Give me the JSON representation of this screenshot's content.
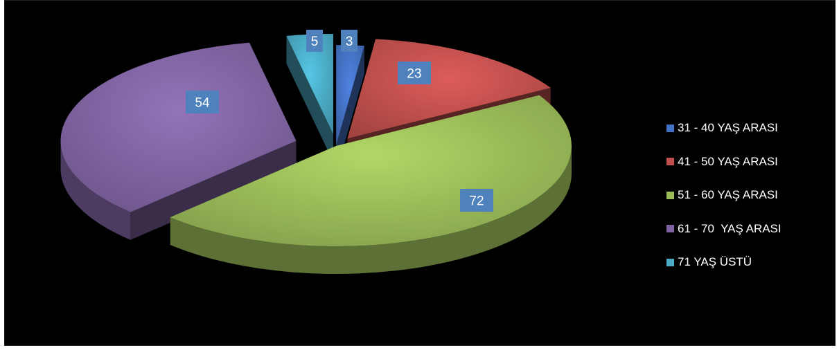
{
  "chart_data": {
    "type": "pie",
    "title": "",
    "legend_position": "right",
    "slices": [
      {
        "label": "31 - 40 YAŞ ARASI",
        "value": 3,
        "color": "#4472C4"
      },
      {
        "label": "41 - 50 YAŞ ARASI",
        "value": 23,
        "color": "#C0504D"
      },
      {
        "label": "51 - 60 YAŞ ARASI",
        "value": 72,
        "color": "#9BBB59"
      },
      {
        "label": "61 - 70  YAŞ ARASI",
        "value": 54,
        "color": "#8064A2"
      },
      {
        "label": "71 YAŞ ÜSTÜ",
        "value": 5,
        "color": "#4BACC6"
      }
    ],
    "exploded": true,
    "style": "3d",
    "data_label_background": "#4F81BD"
  }
}
